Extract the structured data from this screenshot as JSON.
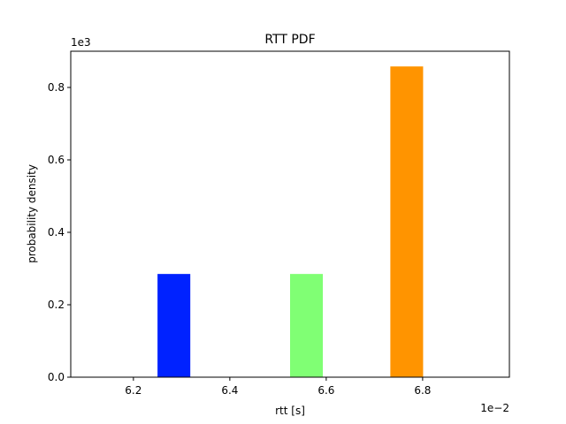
{
  "chart_data": {
    "type": "bar",
    "title": "RTT PDF",
    "xlabel": "rtt [s]",
    "ylabel": "probability density",
    "x_offset_label": "1e−2",
    "y_offset_label": "1e3",
    "x_ticks": [
      6.2,
      6.4,
      6.6,
      6.8
    ],
    "x_tick_labels": [
      "6.2",
      "6.4",
      "6.6",
      "6.8"
    ],
    "y_ticks": [
      0.0,
      0.2,
      0.4,
      0.6,
      0.8
    ],
    "y_tick_labels": [
      "0.0",
      "0.2",
      "0.4",
      "0.6",
      "0.8"
    ],
    "xlim": [
      6.07,
      6.98
    ],
    "ylim": [
      0,
      0.9
    ],
    "grid": false,
    "bars": [
      {
        "x_start": 6.25,
        "x_end": 6.318,
        "value": 0.285,
        "color": "#0022ff"
      },
      {
        "x_start": 6.525,
        "x_end": 6.593,
        "value": 0.285,
        "color": "#80ff74"
      },
      {
        "x_start": 6.733,
        "x_end": 6.801,
        "value": 0.858,
        "color": "#ff9400"
      }
    ]
  }
}
